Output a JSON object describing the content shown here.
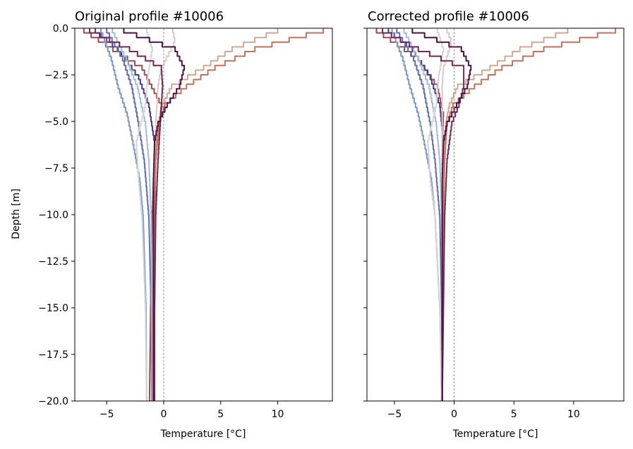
{
  "chart_data": [
    {
      "type": "line",
      "title": "Original profile #10006",
      "xlabel": "Temperature [°C]",
      "ylabel": "Depth [m]",
      "xlim": [
        -7.8,
        14.8
      ],
      "ylim": [
        -20,
        0
      ],
      "xticks": [
        -5,
        0,
        5,
        10
      ],
      "xtick_labels": [
        "−5",
        "0",
        "5",
        "10"
      ],
      "yticks": [
        0,
        -2.5,
        -5,
        -7.5,
        -10,
        -12.5,
        -15,
        -17.5,
        -20
      ],
      "ytick_labels": [
        "0.0",
        "−2.5",
        "−5.0",
        "−7.5",
        "−10.0",
        "−12.5",
        "−15.0",
        "−17.5",
        "−20.0"
      ],
      "reference_line": {
        "x": 0,
        "style": "dashed",
        "color": "#7f7f7f"
      },
      "grid": false,
      "series": [
        {
          "color": "#9f4a54",
          "depth": [
            0,
            -2,
            -4,
            -6,
            -8,
            -10,
            -15,
            -20
          ],
          "temp": [
            -7,
            -1.9,
            -0.2,
            -0.6,
            -0.9,
            -1.0,
            -1.15,
            -1.25
          ]
        },
        {
          "color": "#4a3a8f",
          "depth": [
            0,
            -1,
            -2.5,
            -4,
            -6,
            -8,
            -10,
            -15,
            -20
          ],
          "temp": [
            -6,
            -4,
            -2.2,
            -1.3,
            -0.8,
            -0.75,
            -0.75,
            -0.8,
            -0.8
          ]
        },
        {
          "color": "#7897c4",
          "depth": [
            0,
            -1.5,
            -3,
            -4.5,
            -6,
            -8,
            -10,
            -15,
            -20
          ],
          "temp": [
            -5.5,
            -4.6,
            -4.0,
            -3.2,
            -2.7,
            -2.1,
            -1.8,
            -1.55,
            -1.5
          ]
        },
        {
          "color": "#5f6db0",
          "depth": [
            0,
            -1.5,
            -3,
            -5,
            -7,
            -10,
            -15,
            -20
          ],
          "temp": [
            -5.0,
            -3.6,
            -2.8,
            -2.2,
            -1.7,
            -1.3,
            -1.1,
            -1.05
          ]
        },
        {
          "color": "#a6bdd0",
          "depth": [
            0,
            -1.5,
            -3,
            -5,
            -7,
            -10,
            -15,
            -20
          ],
          "temp": [
            -4.5,
            -3.3,
            -2.3,
            -1.6,
            -1.3,
            -1.1,
            -1.05,
            -1.0
          ]
        },
        {
          "color": "#d6d3d8",
          "depth": [
            0,
            -1,
            -2.5,
            -4,
            -6,
            -8,
            -10,
            -15,
            -20
          ],
          "temp": [
            -1.5,
            -1.0,
            -1.4,
            -1.6,
            -2.4,
            -2.2,
            -1.9,
            -1.6,
            -1.5
          ]
        },
        {
          "color": "#dcc7c9",
          "depth": [
            0,
            -0.6,
            -1.2,
            -2.0,
            -3.0,
            -5,
            -7,
            -10,
            -15,
            -20
          ],
          "temp": [
            0.8,
            1.0,
            0.5,
            -0.2,
            -0.5,
            -0.7,
            -0.8,
            -0.85,
            -0.9,
            -0.9
          ]
        },
        {
          "color": "#d0a994",
          "depth": [
            0,
            -1,
            -2,
            -3,
            -4,
            -5,
            -7,
            -10,
            -15,
            -20
          ],
          "temp": [
            10,
            6,
            3.5,
            0.7,
            -0.1,
            -0.5,
            -0.8,
            -0.9,
            -1.0,
            -1.0
          ]
        },
        {
          "color": "#c2735e",
          "depth": [
            0,
            -1,
            -2,
            -3,
            -4,
            -5,
            -7,
            -10,
            -15,
            -20
          ],
          "temp": [
            14,
            8,
            4.5,
            2.0,
            0.1,
            -0.4,
            -0.7,
            -0.8,
            -0.9,
            -0.9
          ]
        },
        {
          "color": "#6e2a55",
          "depth": [
            0,
            -1,
            -2,
            -3,
            -4,
            -5,
            -7,
            -10,
            -15,
            -20
          ],
          "temp": [
            -6.5,
            -3.0,
            -0.2,
            -0.1,
            -0.2,
            -0.3,
            -0.5,
            -0.7,
            -0.8,
            -0.8
          ]
        },
        {
          "color": "#4d1240",
          "depth": [
            0,
            -1,
            -2,
            -3,
            -4,
            -5,
            -6,
            -8,
            -10,
            -15,
            -20
          ],
          "temp": [
            -3.5,
            1.0,
            1.8,
            1.4,
            0.3,
            -0.5,
            -0.8,
            -0.9,
            -0.9,
            -0.9,
            -0.9
          ]
        }
      ]
    },
    {
      "type": "line",
      "title": "Corrected profile #10006",
      "xlabel": "Temperature [°C]",
      "ylabel": "",
      "xlim": [
        -7.3,
        14.2
      ],
      "ylim": [
        -20,
        0
      ],
      "xticks": [
        -5,
        0,
        5,
        10
      ],
      "xtick_labels": [
        "−5",
        "0",
        "5",
        "10"
      ],
      "yticks": [
        0,
        -2.5,
        -5,
        -7.5,
        -10,
        -12.5,
        -15,
        -17.5,
        -20
      ],
      "ytick_labels": [],
      "reference_line": {
        "x": 0,
        "style": "dashed",
        "color": "#7f7f7f"
      },
      "grid": false,
      "series": [
        {
          "color": "#9f4a54",
          "depth": [
            0,
            -1.5,
            -3,
            -4.5,
            -6,
            -8,
            -10,
            -15,
            -20
          ],
          "temp": [
            -6.5,
            -3.0,
            -1.4,
            -0.9,
            -1.0,
            -1.0,
            -1.0,
            -1.0,
            -1.0
          ]
        },
        {
          "color": "#4a3a8f",
          "depth": [
            0,
            -1,
            -2.5,
            -4,
            -6,
            -8,
            -10,
            -15,
            -20
          ],
          "temp": [
            -5.5,
            -3.5,
            -2.0,
            -1.2,
            -0.9,
            -0.9,
            -0.9,
            -0.95,
            -1.0
          ]
        },
        {
          "color": "#7897c4",
          "depth": [
            0,
            -1.5,
            -3,
            -4.5,
            -6,
            -8,
            -10,
            -15,
            -20
          ],
          "temp": [
            -5.2,
            -4.3,
            -3.7,
            -3.0,
            -2.5,
            -1.9,
            -1.6,
            -1.2,
            -1.05
          ]
        },
        {
          "color": "#5f6db0",
          "depth": [
            0,
            -1.5,
            -3,
            -5,
            -7,
            -10,
            -15,
            -20
          ],
          "temp": [
            -4.8,
            -3.4,
            -2.6,
            -2.0,
            -1.6,
            -1.2,
            -1.05,
            -1.0
          ]
        },
        {
          "color": "#a6bdd0",
          "depth": [
            0,
            -1.5,
            -3,
            -5,
            -7,
            -10,
            -15,
            -20
          ],
          "temp": [
            -4.2,
            -3.0,
            -2.1,
            -1.5,
            -1.2,
            -1.05,
            -1.0,
            -1.0
          ]
        },
        {
          "color": "#d6d3d8",
          "depth": [
            0,
            -1,
            -2.5,
            -4,
            -6,
            -8,
            -10,
            -15,
            -20
          ],
          "temp": [
            -1.4,
            -0.9,
            -1.3,
            -1.5,
            -2.2,
            -2.0,
            -1.6,
            -1.2,
            -1.05
          ]
        },
        {
          "color": "#dcc7c9",
          "depth": [
            0,
            -0.6,
            -1.2,
            -2.0,
            -3.0,
            -5,
            -7,
            -10,
            -15,
            -20
          ],
          "temp": [
            -0.6,
            -0.2,
            -0.5,
            -0.9,
            -1.0,
            -1.0,
            -1.0,
            -1.0,
            -1.0,
            -1.0
          ]
        },
        {
          "color": "#d0a994",
          "depth": [
            0,
            -1,
            -2,
            -3,
            -4,
            -5,
            -7,
            -10,
            -15,
            -20
          ],
          "temp": [
            9.5,
            5.5,
            3.0,
            0.3,
            -0.4,
            -0.7,
            -0.9,
            -1.0,
            -1.0,
            -1.0
          ]
        },
        {
          "color": "#c2735e",
          "depth": [
            0,
            -1,
            -2,
            -3,
            -4,
            -5,
            -7,
            -10,
            -15,
            -20
          ],
          "temp": [
            13.5,
            7.5,
            4.0,
            1.7,
            -0.1,
            -0.6,
            -0.8,
            -0.9,
            -1.0,
            -1.0
          ]
        },
        {
          "color": "#6e2a55",
          "depth": [
            0,
            -1,
            -2,
            -3,
            -4,
            -5,
            -7,
            -10,
            -15,
            -20
          ],
          "temp": [
            -6.0,
            -3.0,
            0.8,
            0.8,
            0.4,
            -0.2,
            -0.6,
            -0.8,
            -0.9,
            -1.0
          ]
        },
        {
          "color": "#4d1240",
          "depth": [
            0,
            -1,
            -2,
            -3,
            -4,
            -5,
            -6,
            -8,
            -10,
            -15,
            -20
          ],
          "temp": [
            -3.5,
            0.6,
            1.4,
            1.1,
            0.2,
            -0.6,
            -0.9,
            -1.0,
            -1.0,
            -1.0,
            -1.0
          ]
        }
      ]
    }
  ]
}
